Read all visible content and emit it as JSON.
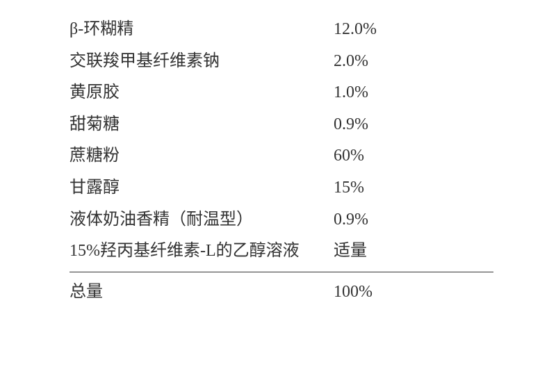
{
  "text_color": "#323232",
  "background_color": "#ffffff",
  "font_size_pt": 18,
  "line_height": 1.9,
  "divider_color": "#323232",
  "rows": [
    {
      "label": "β-环糊精",
      "value": "12.0%"
    },
    {
      "label": "交联羧甲基纤维素钠",
      "value": "2.0%"
    },
    {
      "label": "黄原胶",
      "value": "1.0%"
    },
    {
      "label": "甜菊糖",
      "value": "0.9%"
    },
    {
      "label": "蔗糖粉",
      "value": "60%"
    },
    {
      "label": "甘露醇",
      "value": "15%"
    },
    {
      "label": "液体奶油香精（耐温型）",
      "value": "0.9%"
    },
    {
      "label": "15%羟丙基纤维素-L的乙醇溶液",
      "value": "适量"
    }
  ],
  "total": {
    "label": "总量",
    "value": "100%"
  }
}
